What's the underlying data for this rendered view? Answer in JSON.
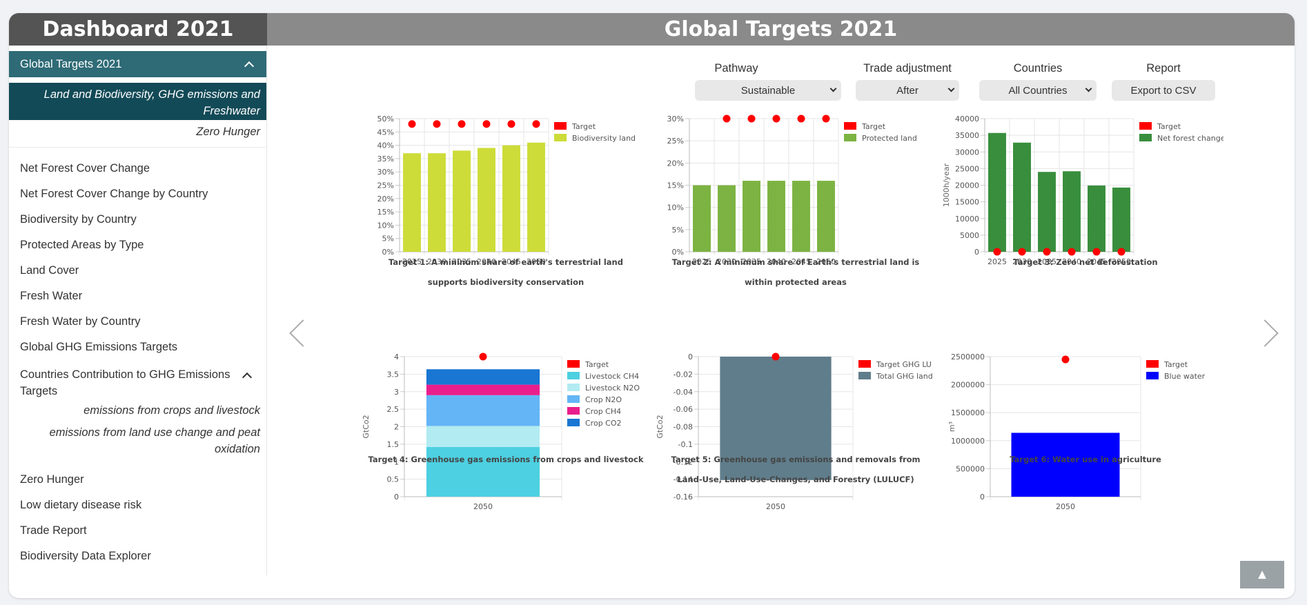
{
  "sidebar": {
    "title": "Dashboard 2021",
    "group_label": "Global Targets 2021",
    "sub_active": "Land and Biodiversity, GHG emissions and Freshwater",
    "sub_zero": "Zero Hunger",
    "items": [
      "Net Forest Cover Change",
      "Net Forest Cover Change by Country",
      "Biodiversity by Country",
      "Protected Areas by Type",
      "Land Cover",
      "Fresh Water",
      "Fresh Water by Country",
      "Global GHG Emissions Targets"
    ],
    "contrib_label": "Countries Contribution to GHG Emissions Targets",
    "contrib_sub1": "emissions from crops and livestock",
    "contrib_sub2": "emissions from land use change and peat oxidation",
    "items2": [
      "Zero Hunger",
      "Low dietary disease risk",
      "Trade Report",
      "Biodiversity Data Explorer"
    ]
  },
  "main": {
    "title": "Global Targets 2021",
    "controls": {
      "pathway_label": "Pathway",
      "pathway_value": "Sustainable",
      "trade_label": "Trade adjustment",
      "trade_value": "After",
      "countries_label": "Countries",
      "countries_value": "All Countries",
      "report_label": "Report",
      "report_button": "Export to CSV"
    },
    "scroll_top": "▲"
  },
  "chart_data": [
    {
      "type": "bar",
      "title": "Target 1: A mininum share of earth's terrestrial land supports biodiversity conservation",
      "categories": [
        "2025",
        "2030",
        "2035",
        "2040",
        "2045",
        "2050"
      ],
      "series": [
        {
          "name": "Target",
          "type": "scatter",
          "color": "#ff0000",
          "values": [
            48,
            48,
            48,
            48,
            48,
            48
          ]
        },
        {
          "name": "Biodiversity land",
          "color": "#cddc39",
          "values": [
            37,
            37,
            38,
            39,
            40,
            41
          ]
        }
      ],
      "ylim": [
        0,
        50
      ],
      "yticks": [
        "0%",
        "5%",
        "10%",
        "15%",
        "20%",
        "25%",
        "30%",
        "35%",
        "40%",
        "45%",
        "50%"
      ],
      "ylabel": ""
    },
    {
      "type": "bar",
      "title": "Target 2: A minimum share of Earth's terrestrial land is within protected areas",
      "categories": [
        "2025",
        "2030",
        "2035",
        "2040",
        "2045",
        "2050"
      ],
      "series": [
        {
          "name": "Target",
          "type": "scatter",
          "color": "#ff0000",
          "values": [
            null,
            30,
            30,
            30,
            30,
            30
          ]
        },
        {
          "name": "Protected land",
          "color": "#7cb342",
          "values": [
            15,
            15,
            16,
            16,
            16,
            16
          ]
        }
      ],
      "ylim": [
        0,
        30
      ],
      "yticks": [
        "0%",
        "5%",
        "10%",
        "15%",
        "20%",
        "25%",
        "30%"
      ],
      "ylabel": ""
    },
    {
      "type": "bar",
      "title": "Target 3: Zero net deforestation",
      "categories": [
        "2025",
        "2030",
        "2035",
        "2040",
        "2045",
        "2050"
      ],
      "series": [
        {
          "name": "Target",
          "type": "scatter",
          "color": "#ff0000",
          "values": [
            0,
            0,
            0,
            0,
            0,
            0
          ]
        },
        {
          "name": "Net forest change",
          "color": "#388e3c",
          "values": [
            35700,
            32800,
            24000,
            24200,
            19900,
            19300
          ]
        }
      ],
      "ylim": [
        0,
        40000
      ],
      "yticks": [
        "0",
        "5000",
        "10000",
        "15000",
        "20000",
        "25000",
        "30000",
        "35000",
        "40000"
      ],
      "ylabel": "1000h/year"
    },
    {
      "type": "bar",
      "stacked": true,
      "title": "Target 4: Greenhouse gas emissions from crops and livestock",
      "categories": [
        "2050"
      ],
      "series": [
        {
          "name": "Target",
          "type": "scatter",
          "color": "#ff0000",
          "values": [
            4
          ]
        },
        {
          "name": "Livestock CH4",
          "color": "#4dd0e1",
          "values": [
            1.42
          ]
        },
        {
          "name": "Livestock N2O",
          "color": "#b2ebf2",
          "values": [
            0.6
          ]
        },
        {
          "name": "Crop N2O",
          "color": "#64b5f6",
          "values": [
            0.88
          ]
        },
        {
          "name": "Crop CH4",
          "color": "#e91e8c",
          "values": [
            0.3
          ]
        },
        {
          "name": "Crop CO2",
          "color": "#1976d2",
          "values": [
            0.44
          ]
        }
      ],
      "ylim": [
        0,
        4
      ],
      "yticks": [
        "0",
        "0.5",
        "1",
        "1.5",
        "2",
        "2.5",
        "3",
        "3.5",
        "4"
      ],
      "ylabel": "GtCo2"
    },
    {
      "type": "bar",
      "title": "Target 5: Greenhouse gas emissions and removals from Land-Use, Land-Use-Changes, and Forestry (LULUCF)",
      "categories": [
        "2050"
      ],
      "series": [
        {
          "name": "Target GHG LU",
          "type": "scatter",
          "color": "#ff0000",
          "values": [
            0
          ]
        },
        {
          "name": "Total GHG land",
          "color": "#607d8b",
          "values": [
            -0.141
          ]
        }
      ],
      "ylim": [
        -0.16,
        0
      ],
      "yticks": [
        "0",
        "-0.02",
        "-0.04",
        "-0.06",
        "-0.08",
        "-0.1",
        "-0.12",
        "-0.14",
        "-0.16"
      ],
      "ylabel": "GtCo2"
    },
    {
      "type": "bar",
      "title": "Target 6: Water use in agriculture",
      "categories": [
        "2050"
      ],
      "series": [
        {
          "name": "Target",
          "type": "scatter",
          "color": "#ff0000",
          "values": [
            2450000
          ]
        },
        {
          "name": "Blue water",
          "color": "#0000ff",
          "values": [
            1140000
          ]
        }
      ],
      "ylim": [
        0,
        2500000
      ],
      "yticks": [
        "0",
        "500000",
        "1000000",
        "1500000",
        "2000000",
        "2500000"
      ],
      "ylabel": "m³"
    }
  ]
}
